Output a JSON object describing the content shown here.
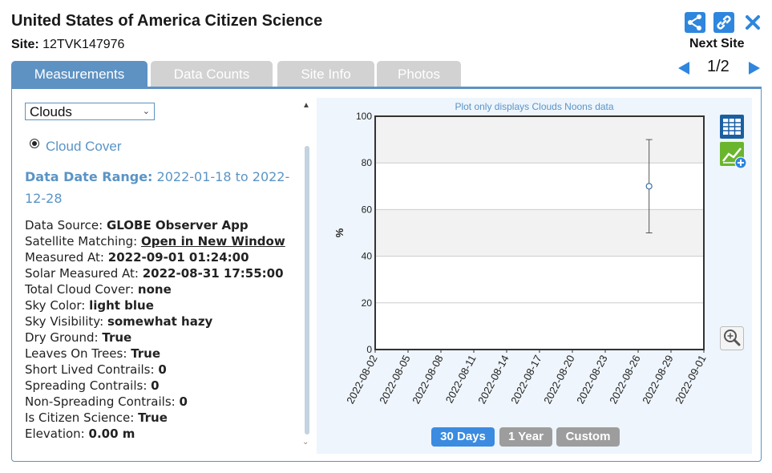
{
  "header": {
    "title": "United States of America Citizen Science",
    "site_label": "Site:",
    "site_id": "12TVK147976"
  },
  "nav": {
    "next_site_label": "Next Site",
    "page_indicator": "1/2",
    "icons": [
      "share-icon",
      "link-icon",
      "close-icon",
      "arrow-left-icon",
      "arrow-right-icon"
    ]
  },
  "tabs": [
    {
      "label": "Measurements",
      "active": true
    },
    {
      "label": "Data Counts",
      "active": false
    },
    {
      "label": "Site Info",
      "active": false
    },
    {
      "label": "Photos",
      "active": false
    }
  ],
  "measurement_select": {
    "value": "Clouds"
  },
  "radio": {
    "label": "Cloud Cover",
    "selected": true
  },
  "date_range": {
    "label": "Data Date Range:",
    "value": "2022-01-18 to 2022-12-28"
  },
  "details": [
    {
      "label": "Data Source:",
      "value": "GLOBE Observer App"
    },
    {
      "label": "Satellite Matching:",
      "value": "Open in New Window",
      "link": true
    },
    {
      "label": "Measured At:",
      "value": "2022-09-01 01:24:00"
    },
    {
      "label": "Solar Measured At:",
      "value": "2022-08-31 17:55:00"
    },
    {
      "label": "Total Cloud Cover:",
      "value": "none"
    },
    {
      "label": "Sky Color:",
      "value": "light blue"
    },
    {
      "label": "Sky Visibility:",
      "value": "somewhat hazy"
    },
    {
      "label": "Dry Ground:",
      "value": "True"
    },
    {
      "label": "Leaves On Trees:",
      "value": "True"
    },
    {
      "label": "Short Lived Contrails:",
      "value": "0"
    },
    {
      "label": "Spreading Contrails:",
      "value": "0"
    },
    {
      "label": "Non-Spreading Contrails:",
      "value": "0"
    },
    {
      "label": "Is Citizen Science:",
      "value": "True"
    },
    {
      "label": "Elevation:",
      "value": "0.00 m"
    }
  ],
  "chart": {
    "note": "Plot only displays Clouds Noons data",
    "range_buttons": [
      {
        "label": "30 Days",
        "active": true
      },
      {
        "label": "1 Year",
        "active": false
      },
      {
        "label": "Custom",
        "active": false
      }
    ],
    "side_icons": [
      "table-icon",
      "add-chart-icon",
      "zoom-in-icon"
    ]
  },
  "chart_data": {
    "type": "scatter",
    "title": "",
    "ylabel": "%",
    "xlabel": "",
    "ylim": [
      0,
      100
    ],
    "yticks": [
      0,
      20,
      40,
      60,
      80,
      100
    ],
    "xticks": [
      "2022-08-02",
      "2022-08-05",
      "2022-08-08",
      "2022-08-11",
      "2022-08-14",
      "2022-08-17",
      "2022-08-20",
      "2022-08-23",
      "2022-08-26",
      "2022-08-29",
      "2022-09-01"
    ],
    "xlim": [
      "2022-08-02",
      "2022-09-01"
    ],
    "grid": "horizontal bands",
    "points": [
      {
        "x": "2022-08-27",
        "y": 70,
        "low": 50,
        "high": 90
      }
    ]
  },
  "colors": {
    "accent": "#5e92c3",
    "link_text": "#5a94c6",
    "chart_bg": "#eef5fc",
    "button_active": "#3b8be0",
    "button_inactive": "#9d9d9d"
  }
}
